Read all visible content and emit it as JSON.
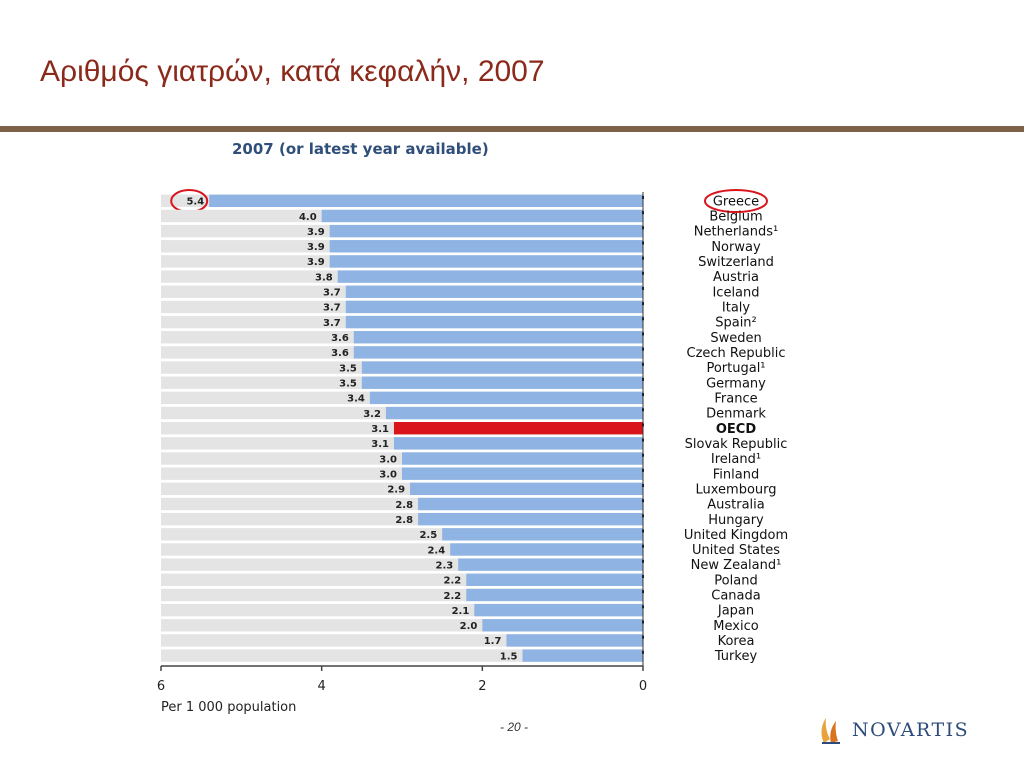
{
  "slide": {
    "title": "Αριθμός γιατρών, κατά κεφαλήν, 2007",
    "page_number": "- 20 -",
    "logo_text": "NOVARTIS"
  },
  "colors": {
    "title": "#8b2a1b",
    "rule": "#7b6249",
    "bar": "#8fb4e3",
    "highlight_bar": "#d9141a",
    "row_background": "#e4e4e4",
    "circle_annotation": "#d9141a"
  },
  "chart_data": {
    "type": "bar",
    "orientation": "horizontal",
    "direction": "right-to-left",
    "title": "2007 (or latest year available)",
    "xlabel": "Per 1 000 population",
    "xlim": [
      0,
      6
    ],
    "xticks": [
      "6",
      "4",
      "2",
      "0"
    ],
    "categories": [
      "Greece",
      "Belgium",
      "Netherlands¹",
      "Norway",
      "Switzerland",
      "Austria",
      "Iceland",
      "Italy",
      "Spain²",
      "Sweden",
      "Czech Republic",
      "Portugal¹",
      "Germany",
      "France",
      "Denmark",
      "OECD",
      "Slovak Republic",
      "Ireland¹",
      "Finland",
      "Luxembourg",
      "Australia",
      "Hungary",
      "United Kingdom",
      "United States",
      "New Zealand¹",
      "Poland",
      "Canada",
      "Japan",
      "Mexico",
      "Korea",
      "Turkey"
    ],
    "values": [
      5.4,
      4.0,
      3.9,
      3.9,
      3.9,
      3.8,
      3.7,
      3.7,
      3.7,
      3.6,
      3.6,
      3.5,
      3.5,
      3.4,
      3.2,
      3.1,
      3.1,
      3.0,
      3.0,
      2.9,
      2.8,
      2.8,
      2.5,
      2.4,
      2.3,
      2.2,
      2.2,
      2.1,
      2.0,
      1.7,
      1.5
    ],
    "value_labels": [
      "5.4",
      "4.0",
      "3.9",
      "3.9",
      "3.9",
      "3.8",
      "3.7",
      "3.7",
      "3.7",
      "3.6",
      "3.6",
      "3.5",
      "3.5",
      "3.4",
      "3.2",
      "3.1",
      "3.1",
      "3.0",
      "3.0",
      "2.9",
      "2.8",
      "2.8",
      "2.5",
      "2.4",
      "2.3",
      "2.2",
      "2.2",
      "2.1",
      "2.0",
      "1.7",
      "1.5"
    ],
    "highlight_category": "OECD",
    "circled": [
      "Greece"
    ],
    "grid": false
  }
}
